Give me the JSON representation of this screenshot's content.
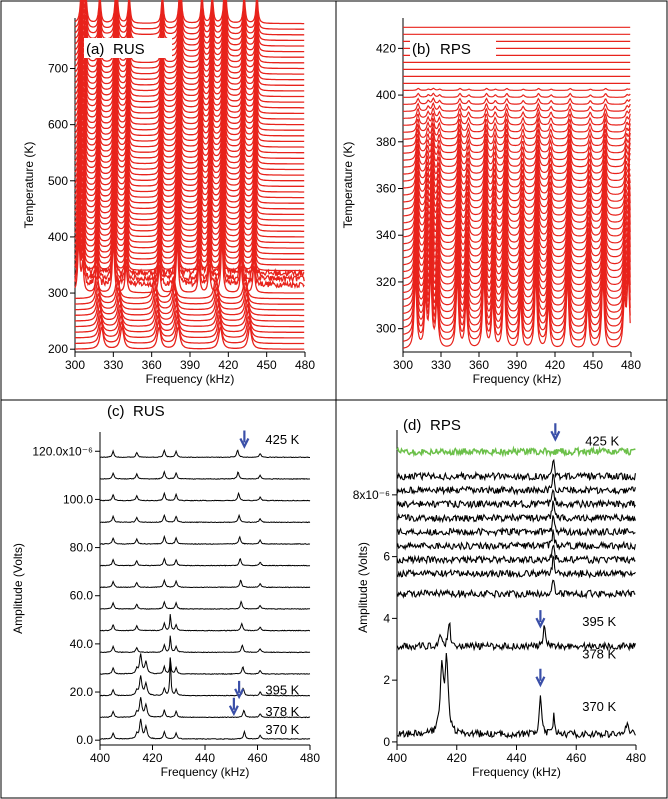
{
  "colors": {
    "rps_trace": "#e8231c",
    "arrow": "#3a4fa8",
    "highlight": "#6cc04a",
    "trace": "#000000"
  },
  "chart_data": [
    {
      "type": "line",
      "panel_label": "(a)",
      "title": "RUS",
      "xlabel": "Frequency (kHz)",
      "ylabel": "Temperature (K)",
      "xlim": [
        300,
        480
      ],
      "ylim": [
        195,
        790
      ],
      "xticks": [
        300,
        330,
        360,
        390,
        420,
        450,
        480
      ],
      "yticks": [
        200,
        300,
        400,
        500,
        600,
        700
      ],
      "stack": {
        "t_start": 200,
        "t_end": 785,
        "t_step": 10
      },
      "series": [
        {
          "peak_frequencies_kHz": [
            317,
            333,
            362,
            377,
            410,
            433
          ],
          "temperature_range": [
            200,
            290
          ]
        },
        {
          "peak_frequencies_kHz": [
            303,
            306,
            317,
            330,
            340,
            366,
            380,
            397,
            405,
            415,
            430,
            440
          ],
          "temperature_range": [
            300,
            785
          ]
        }
      ]
    },
    {
      "type": "line",
      "panel_label": "(b)",
      "title": "RPS",
      "xlabel": "Frequency (kHz)",
      "ylabel": "Temperature (K)",
      "xlim": [
        300,
        480
      ],
      "ylim": [
        290,
        433
      ],
      "xticks": [
        300,
        330,
        360,
        390,
        420,
        450,
        480
      ],
      "yticks": [
        300,
        320,
        340,
        360,
        380,
        400,
        420
      ],
      "stack": {
        "t_start": 291,
        "t_end": 429,
        "t_step": 3
      },
      "series": [
        {
          "peak_frequencies_kHz": [
            310,
            318,
            322,
            327,
            343,
            350,
            364,
            371,
            380,
            393,
            405,
            415,
            430,
            446,
            458,
            475,
            478
          ]
        }
      ]
    },
    {
      "type": "line",
      "panel_label": "(c)",
      "title": "RUS",
      "xlabel": "Frequency (kHz)",
      "ylabel": "Amplitude (Volts)",
      "xlim": [
        400,
        480
      ],
      "ylim": [
        -2e-06,
        0.000128
      ],
      "xticks": [
        400,
        420,
        440,
        460,
        480
      ],
      "ytick_labels": [
        "0.0",
        "20.0",
        "40.0",
        "60.0",
        "80.0",
        "100.0",
        "120.0x10⁻⁶"
      ],
      "ytick_values": [
        0,
        2e-05,
        4e-05,
        6e-05,
        8e-05,
        0.0001,
        0.00012
      ],
      "annotations": [
        {
          "text": "425 K",
          "x": 463,
          "y": 0.000123
        },
        {
          "text": "395 K",
          "x": 463,
          "y": 1.9e-05
        },
        {
          "text": "378 K",
          "x": 463,
          "y": 1e-05
        },
        {
          "text": "370 K",
          "x": 463,
          "y": 2.5e-06
        }
      ],
      "arrows": [
        {
          "x": 455,
          "y": 0.000122
        },
        {
          "x": 453,
          "y": 1.8e-05
        },
        {
          "x": 451,
          "y": 1.1e-05
        }
      ],
      "traces": {
        "count": 14,
        "offset": 9e-06,
        "baseline_start": 5e-07
      },
      "peaks": [
        {
          "x": 415.5,
          "amplitude": 8e-06
        },
        {
          "x": 417.5,
          "amplitude": 5e-06
        },
        {
          "x": 426.8,
          "amplitude": 4e-06
        },
        {
          "x": 455,
          "amplitude": 3e-06
        }
      ]
    },
    {
      "type": "line",
      "panel_label": "(d)",
      "title": "RPS",
      "xlabel": "Frequency (kHz)",
      "ylabel": "Amplitude (Volts)",
      "xlim": [
        400,
        480
      ],
      "ylim": [
        -1e-07,
        1.01e-05
      ],
      "xticks": [
        400,
        420,
        440,
        460,
        480
      ],
      "ytick_labels": [
        "0",
        "2",
        "4",
        "6",
        "8x10⁻⁶"
      ],
      "ytick_values": [
        0,
        2e-06,
        4e-06,
        6e-06,
        8e-06
      ],
      "annotations": [
        {
          "text": "425 K",
          "x": 463,
          "y": 9.6e-06
        },
        {
          "text": "395 K",
          "x": 462,
          "y": 3.75e-06
        },
        {
          "text": "378 K",
          "x": 462,
          "y": 2.7e-06
        },
        {
          "text": "370 K",
          "x": 462,
          "y": 1e-06
        }
      ],
      "arrows": [
        {
          "x": 453,
          "y": 9.8e-06
        },
        {
          "x": 448,
          "y": 3.75e-06
        },
        {
          "x": 448,
          "y": 1.85e-06
        }
      ],
      "traces": {
        "count": 12
      },
      "peaks": [
        {
          "x": 415,
          "amplitude": 2.4e-06
        },
        {
          "x": 416.5,
          "amplitude": 2.6e-06
        },
        {
          "x": 448,
          "amplitude": 1.4e-06
        },
        {
          "x": 452,
          "amplitude": 7e-07
        }
      ]
    }
  ]
}
